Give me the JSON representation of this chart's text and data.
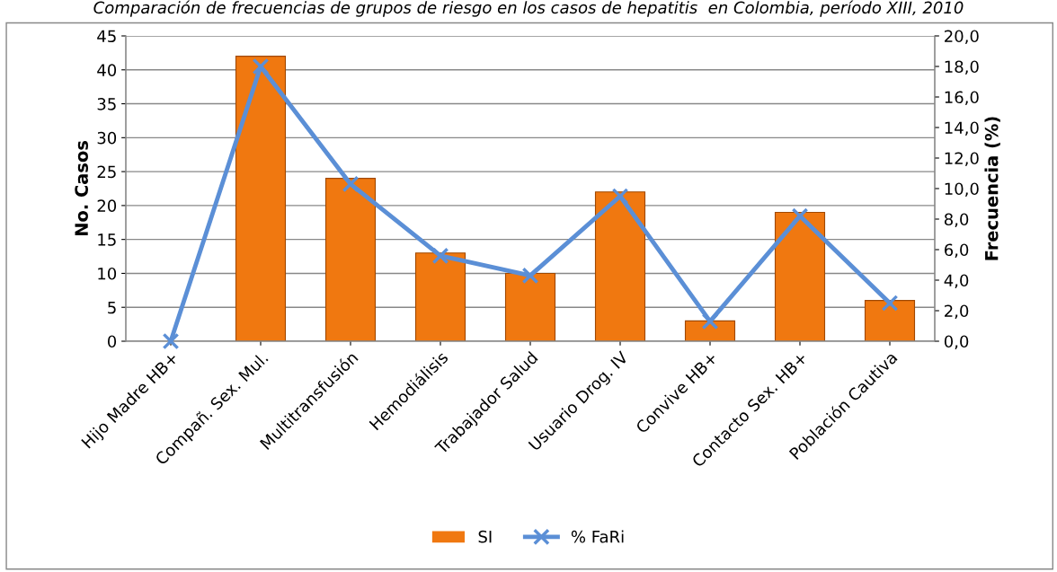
{
  "chart_data": {
    "type": "bar",
    "title": "Comparación de frecuencias de grupos de riesgo en los casos de hepatitis  en Colombia, período XIII, 2010",
    "categories": [
      "Hijo Madre HB+",
      "Compañ. Sex. Mul.",
      "Multitransfusión",
      "Hemodiálisis",
      "Trabajador Salud",
      "Usuario Drog. IV",
      "Convive HB+",
      "Contacto Sex. HB+",
      "Población Cautiva"
    ],
    "series": [
      {
        "name": "SI",
        "color": "#f07810",
        "values": [
          0,
          42,
          24,
          13,
          10,
          22,
          3,
          19,
          6
        ]
      },
      {
        "name": "% FaRi",
        "type": "line",
        "axis": "y2",
        "color": "#5b8fd6",
        "marker": "cross",
        "values": [
          0,
          18.0,
          10.3,
          5.6,
          4.3,
          9.5,
          1.3,
          8.2,
          2.5
        ]
      }
    ],
    "ylabel": "No. Casos",
    "y2label": "Frecuencia (%)",
    "ylim": [
      0,
      45
    ],
    "yticks": [
      0,
      5,
      10,
      15,
      20,
      25,
      30,
      35,
      40,
      45
    ],
    "y2lim": [
      0,
      20
    ],
    "y2ticks": [
      {
        "value": 0,
        "label": "0,0"
      },
      {
        "value": 2,
        "label": "2,0"
      },
      {
        "value": 4,
        "label": "4,0"
      },
      {
        "value": 6,
        "label": "6,0"
      },
      {
        "value": 8,
        "label": "8,0"
      },
      {
        "value": 10,
        "label": "10,0"
      },
      {
        "value": 12,
        "label": "12,0"
      },
      {
        "value": 14,
        "label": "14,0"
      },
      {
        "value": 16,
        "label": "16,0"
      },
      {
        "value": 18,
        "label": "18,0"
      },
      {
        "value": 20,
        "label": "20,0"
      }
    ],
    "grid": "y",
    "legend": "bottom"
  }
}
